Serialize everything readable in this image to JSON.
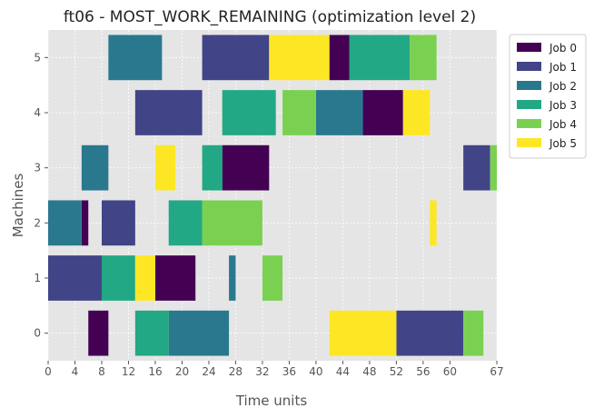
{
  "chart_data": {
    "type": "gantt",
    "title": "ft06 - MOST_WORK_REMAINING (optimization level 2)",
    "xlabel": "Time units",
    "ylabel": "Machines",
    "xlim": [
      0,
      67
    ],
    "x_ticks": [
      0,
      4,
      8,
      12,
      16,
      20,
      24,
      28,
      32,
      36,
      40,
      44,
      48,
      52,
      56,
      60,
      67
    ],
    "machines": [
      0,
      1,
      2,
      3,
      4,
      5
    ],
    "grid": true,
    "legend_position": "outside-right-top",
    "jobs": [
      {
        "name": "Job 0",
        "color": "#440154",
        "tasks": [
          {
            "machine": 0,
            "start": 6,
            "end": 9
          },
          {
            "machine": 1,
            "start": 16,
            "end": 22
          },
          {
            "machine": 2,
            "start": 5,
            "end": 6
          },
          {
            "machine": 3,
            "start": 26,
            "end": 33
          },
          {
            "machine": 4,
            "start": 47,
            "end": 53
          },
          {
            "machine": 5,
            "start": 42,
            "end": 45
          }
        ]
      },
      {
        "name": "Job 1",
        "color": "#414487",
        "tasks": [
          {
            "machine": 0,
            "start": 52,
            "end": 62
          },
          {
            "machine": 1,
            "start": 0,
            "end": 8
          },
          {
            "machine": 2,
            "start": 8,
            "end": 13
          },
          {
            "machine": 3,
            "start": 62,
            "end": 66
          },
          {
            "machine": 4,
            "start": 13,
            "end": 23
          },
          {
            "machine": 5,
            "start": 23,
            "end": 33
          }
        ]
      },
      {
        "name": "Job 2",
        "color": "#2a788e",
        "tasks": [
          {
            "machine": 0,
            "start": 18,
            "end": 27
          },
          {
            "machine": 1,
            "start": 27,
            "end": 28
          },
          {
            "machine": 2,
            "start": 0,
            "end": 5
          },
          {
            "machine": 3,
            "start": 5,
            "end": 9
          },
          {
            "machine": 4,
            "start": 40,
            "end": 47
          },
          {
            "machine": 5,
            "start": 9,
            "end": 17
          }
        ]
      },
      {
        "name": "Job 3",
        "color": "#22a884",
        "tasks": [
          {
            "machine": 0,
            "start": 13,
            "end": 18
          },
          {
            "machine": 1,
            "start": 8,
            "end": 13
          },
          {
            "machine": 2,
            "start": 18,
            "end": 23
          },
          {
            "machine": 3,
            "start": 23,
            "end": 26
          },
          {
            "machine": 4,
            "start": 26,
            "end": 34
          },
          {
            "machine": 5,
            "start": 45,
            "end": 54
          }
        ]
      },
      {
        "name": "Job 4",
        "color": "#7ad151",
        "tasks": [
          {
            "machine": 0,
            "start": 62,
            "end": 65
          },
          {
            "machine": 1,
            "start": 32,
            "end": 35
          },
          {
            "machine": 2,
            "start": 23,
            "end": 32
          },
          {
            "machine": 3,
            "start": 66,
            "end": 67
          },
          {
            "machine": 4,
            "start": 35,
            "end": 40
          },
          {
            "machine": 5,
            "start": 54,
            "end": 58
          }
        ]
      },
      {
        "name": "Job 5",
        "color": "#fde725",
        "tasks": [
          {
            "machine": 0,
            "start": 42,
            "end": 52
          },
          {
            "machine": 1,
            "start": 13,
            "end": 16
          },
          {
            "machine": 2,
            "start": 57,
            "end": 58
          },
          {
            "machine": 3,
            "start": 16,
            "end": 19
          },
          {
            "machine": 4,
            "start": 53,
            "end": 57
          },
          {
            "machine": 5,
            "start": 33,
            "end": 42
          }
        ]
      }
    ]
  }
}
